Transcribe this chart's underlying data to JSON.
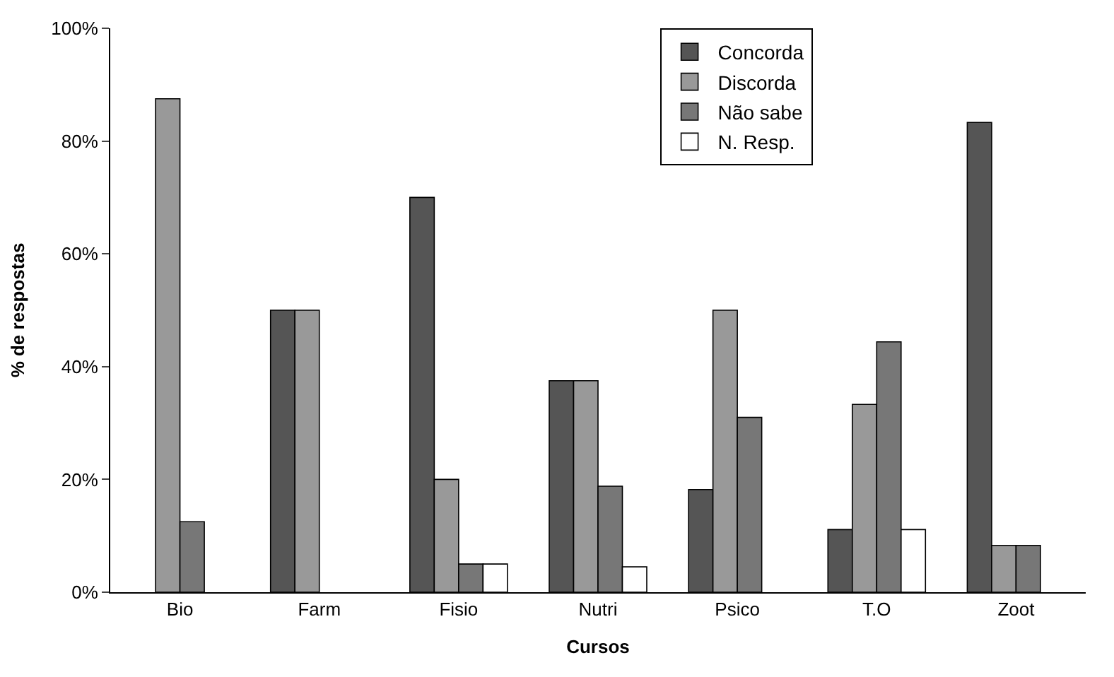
{
  "chart_data": {
    "type": "bar",
    "xlabel": "Cursos",
    "ylabel": "% de respostas",
    "categories": [
      "Bio",
      "Farm",
      "Fisio",
      "Nutri",
      "Psico",
      "T.O",
      "Zoot"
    ],
    "series": [
      {
        "name": "Concorda",
        "color": "#555555",
        "values": [
          0,
          50,
          70,
          37.5,
          18.2,
          11.1,
          83.3
        ]
      },
      {
        "name": "Discorda",
        "color": "#999999",
        "values": [
          87.5,
          50,
          20,
          37.5,
          50,
          33.3,
          8.3
        ]
      },
      {
        "name": "Não sabe",
        "color": "#777777",
        "values": [
          12.5,
          0,
          5,
          18.8,
          31,
          44.4,
          8.3
        ]
      },
      {
        "name": "N. Resp.",
        "color": "#ffffff",
        "values": [
          0,
          0,
          5,
          4.5,
          0,
          11.1,
          0
        ]
      }
    ],
    "ylim": [
      0,
      100
    ],
    "yticks": [
      {
        "value": 0,
        "label": "0%"
      },
      {
        "value": 20,
        "label": "20%"
      },
      {
        "value": 40,
        "label": "40%"
      },
      {
        "value": 60,
        "label": "60%"
      },
      {
        "value": 80,
        "label": "80%"
      },
      {
        "value": 100,
        "label": "100%"
      }
    ],
    "legend": "top right"
  }
}
